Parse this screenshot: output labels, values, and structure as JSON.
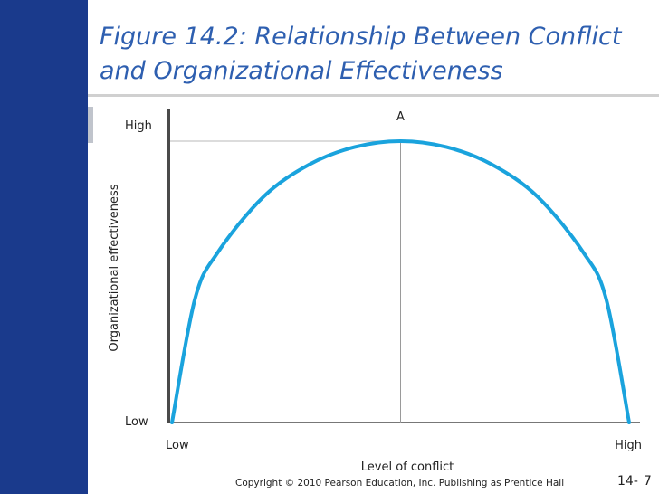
{
  "slide": {
    "title": "Figure 14.2: Relationship Between Conflict and Organizational Effectiveness",
    "footer": "Copyright © 2010 Pearson Education, Inc. Publishing as Prentice Hall",
    "chapter_prefix": "14-",
    "page_number": "7"
  },
  "colors": {
    "sidebar": "#1a3a8c",
    "title": "#2e5fb0",
    "curve": "#1aa3dd",
    "axis": "#4a4a4a"
  },
  "chart_data": {
    "type": "line",
    "title": "",
    "xlabel": "Level of conflict",
    "ylabel": "Organizational effectiveness",
    "x_tick_labels": [
      "Low",
      "High"
    ],
    "y_tick_labels": [
      "Low",
      "High"
    ],
    "xlim": [
      0,
      1
    ],
    "ylim": [
      0,
      1
    ],
    "grid": false,
    "legend": "none",
    "annotation": {
      "label": "A",
      "x": 0.5,
      "y": 0.96
    },
    "series": [
      {
        "x": [
          0.0,
          0.05,
          0.1,
          0.2,
          0.3,
          0.4,
          0.5,
          0.6,
          0.7,
          0.8,
          0.9,
          0.95,
          1.0
        ],
        "y": [
          0.0,
          0.42,
          0.58,
          0.77,
          0.88,
          0.94,
          0.96,
          0.94,
          0.88,
          0.77,
          0.58,
          0.42,
          0.0
        ]
      }
    ]
  }
}
